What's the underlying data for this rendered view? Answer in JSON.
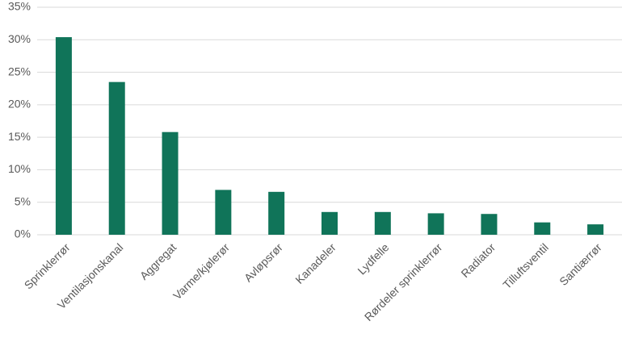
{
  "chart_data": {
    "type": "bar",
    "categories": [
      "Sprinklerrør",
      "Ventilasjonskanal",
      "Aggregat",
      "Varme/kjølerør",
      "Avløpsrør",
      "Kanadeler",
      "Lydfelle",
      "Rørdeler sprinklerrør",
      "Radiator",
      "Tilluftsventil",
      "Santiærrør"
    ],
    "values": [
      30.4,
      23.5,
      15.8,
      6.9,
      6.6,
      3.5,
      3.5,
      3.3,
      3.2,
      1.9,
      1.6
    ],
    "color": "#107459",
    "ylim": [
      0,
      35
    ],
    "yticks": [
      {
        "value": 0,
        "label": "0%"
      },
      {
        "value": 5,
        "label": "5%"
      },
      {
        "value": 10,
        "label": "10%"
      },
      {
        "value": 15,
        "label": "15%"
      },
      {
        "value": 20,
        "label": "20%"
      },
      {
        "value": 25,
        "label": "25%"
      },
      {
        "value": 30,
        "label": "30%"
      },
      {
        "value": 35,
        "label": "35%"
      }
    ],
    "grid": true
  }
}
